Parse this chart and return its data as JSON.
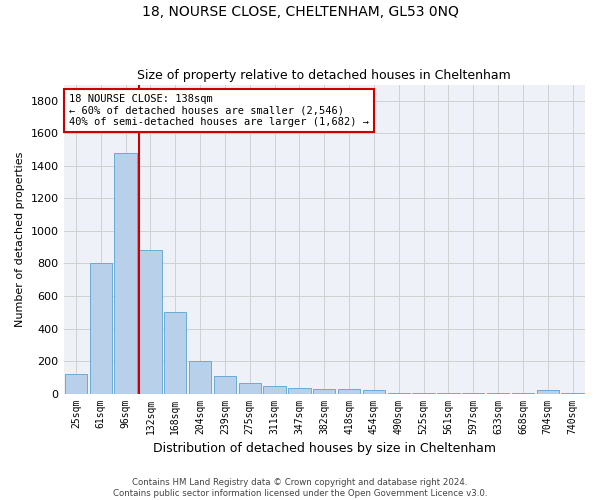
{
  "title": "18, NOURSE CLOSE, CHELTENHAM, GL53 0NQ",
  "subtitle": "Size of property relative to detached houses in Cheltenham",
  "xlabel": "Distribution of detached houses by size in Cheltenham",
  "ylabel": "Number of detached properties",
  "footer1": "Contains HM Land Registry data © Crown copyright and database right 2024.",
  "footer2": "Contains public sector information licensed under the Open Government Licence v3.0.",
  "bin_labels": [
    "25sqm",
    "61sqm",
    "96sqm",
    "132sqm",
    "168sqm",
    "204sqm",
    "239sqm",
    "275sqm",
    "311sqm",
    "347sqm",
    "382sqm",
    "418sqm",
    "454sqm",
    "490sqm",
    "525sqm",
    "561sqm",
    "597sqm",
    "633sqm",
    "668sqm",
    "704sqm",
    "740sqm"
  ],
  "bar_values": [
    120,
    800,
    1480,
    880,
    500,
    200,
    105,
    65,
    45,
    35,
    30,
    25,
    20,
    3,
    3,
    3,
    3,
    3,
    3,
    20,
    3
  ],
  "bar_color": "#b8d0ea",
  "bar_edge_color": "#6aabd4",
  "vline_x": 2.55,
  "vline_color": "#cc0000",
  "annotation_text": "18 NOURSE CLOSE: 138sqm\n← 60% of detached houses are smaller (2,546)\n40% of semi-detached houses are larger (1,682) →",
  "annotation_box_color": "#ffffff",
  "annotation_box_edge": "#cc0000",
  "ylim": [
    0,
    1900
  ],
  "yticks": [
    0,
    200,
    400,
    600,
    800,
    1000,
    1200,
    1400,
    1600,
    1800
  ],
  "grid_color": "#d0d0d0",
  "bg_color": "#eef2f8",
  "title_fontsize": 10,
  "subtitle_fontsize": 9
}
